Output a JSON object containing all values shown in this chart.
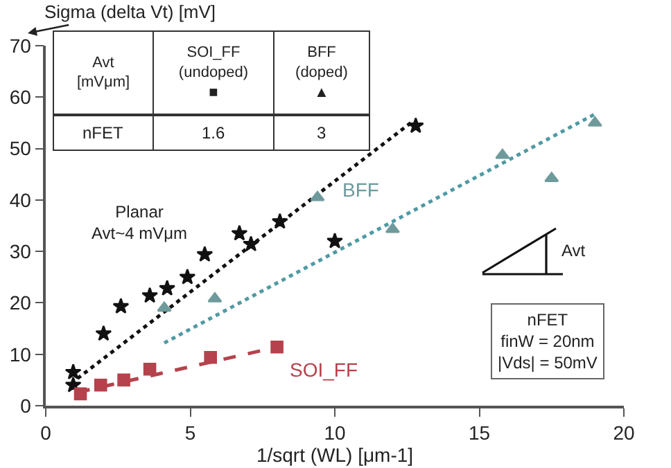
{
  "chart_data": {
    "type": "scatter",
    "ylabel": "Sigma (delta Vt) [mV]",
    "xlabel": "1/sqrt (WL) [μm-1]",
    "xlim": [
      0,
      20
    ],
    "xticks": [
      0,
      5,
      10,
      15,
      20
    ],
    "ylim": [
      0,
      70
    ],
    "yticks": [
      0,
      10,
      20,
      30,
      40,
      50,
      60,
      70
    ],
    "series": [
      {
        "type": "scatter",
        "marker": "star",
        "color": "#111111",
        "x": [
          0.95,
          0.95,
          2.0,
          2.6,
          3.6,
          4.2,
          4.9,
          5.5,
          6.7,
          7.1,
          8.1,
          10.0,
          12.8
        ],
        "values": [
          6.5,
          4,
          14,
          19.3,
          21.4,
          22.8,
          25,
          29.4,
          33.5,
          31.4,
          35.8,
          32,
          54.4
        ]
      },
      {
        "type": "line",
        "line_style": "dotted",
        "color": "#111111",
        "x": [
          1.1,
          12.7
        ],
        "values": [
          5.3,
          55.3
        ]
      },
      {
        "name": "BFF",
        "type": "scatter",
        "marker": "triangle",
        "color": "#6f9a9c",
        "x": [
          4.1,
          5.85,
          9.4,
          12.0,
          15.8,
          17.5,
          19.0
        ],
        "values": [
          19,
          20.8,
          40.5,
          34.3,
          48.7,
          44.2,
          55
        ]
      },
      {
        "type": "line",
        "line_style": "dotted",
        "color": "#4f9aa3",
        "x": [
          4.1,
          19.0
        ],
        "values": [
          12.2,
          56.7
        ]
      },
      {
        "name": "SOI_FF",
        "type": "scatter",
        "marker": "square",
        "color": "#b5424c",
        "x": [
          1.2,
          1.9,
          2.7,
          3.6,
          5.7,
          8.0
        ],
        "values": [
          2.3,
          4,
          5,
          7.1,
          9.4,
          11.4
        ]
      },
      {
        "type": "line",
        "line_style": "dashed",
        "color": "#b5424c",
        "x": [
          1.1,
          8.0
        ],
        "values": [
          2.6,
          11.4
        ]
      }
    ],
    "annotations": [
      "Avt\n[mVμm]",
      "SOI_FF\n(undoped)\n■",
      "BFF\n(doped)\n▲",
      "nFET",
      "1.6",
      "3",
      "Planar\nAvt~4 mVμm",
      "Avt",
      "nFET\nfinW = 20nm\n|Vds| = 50mV"
    ]
  }
}
